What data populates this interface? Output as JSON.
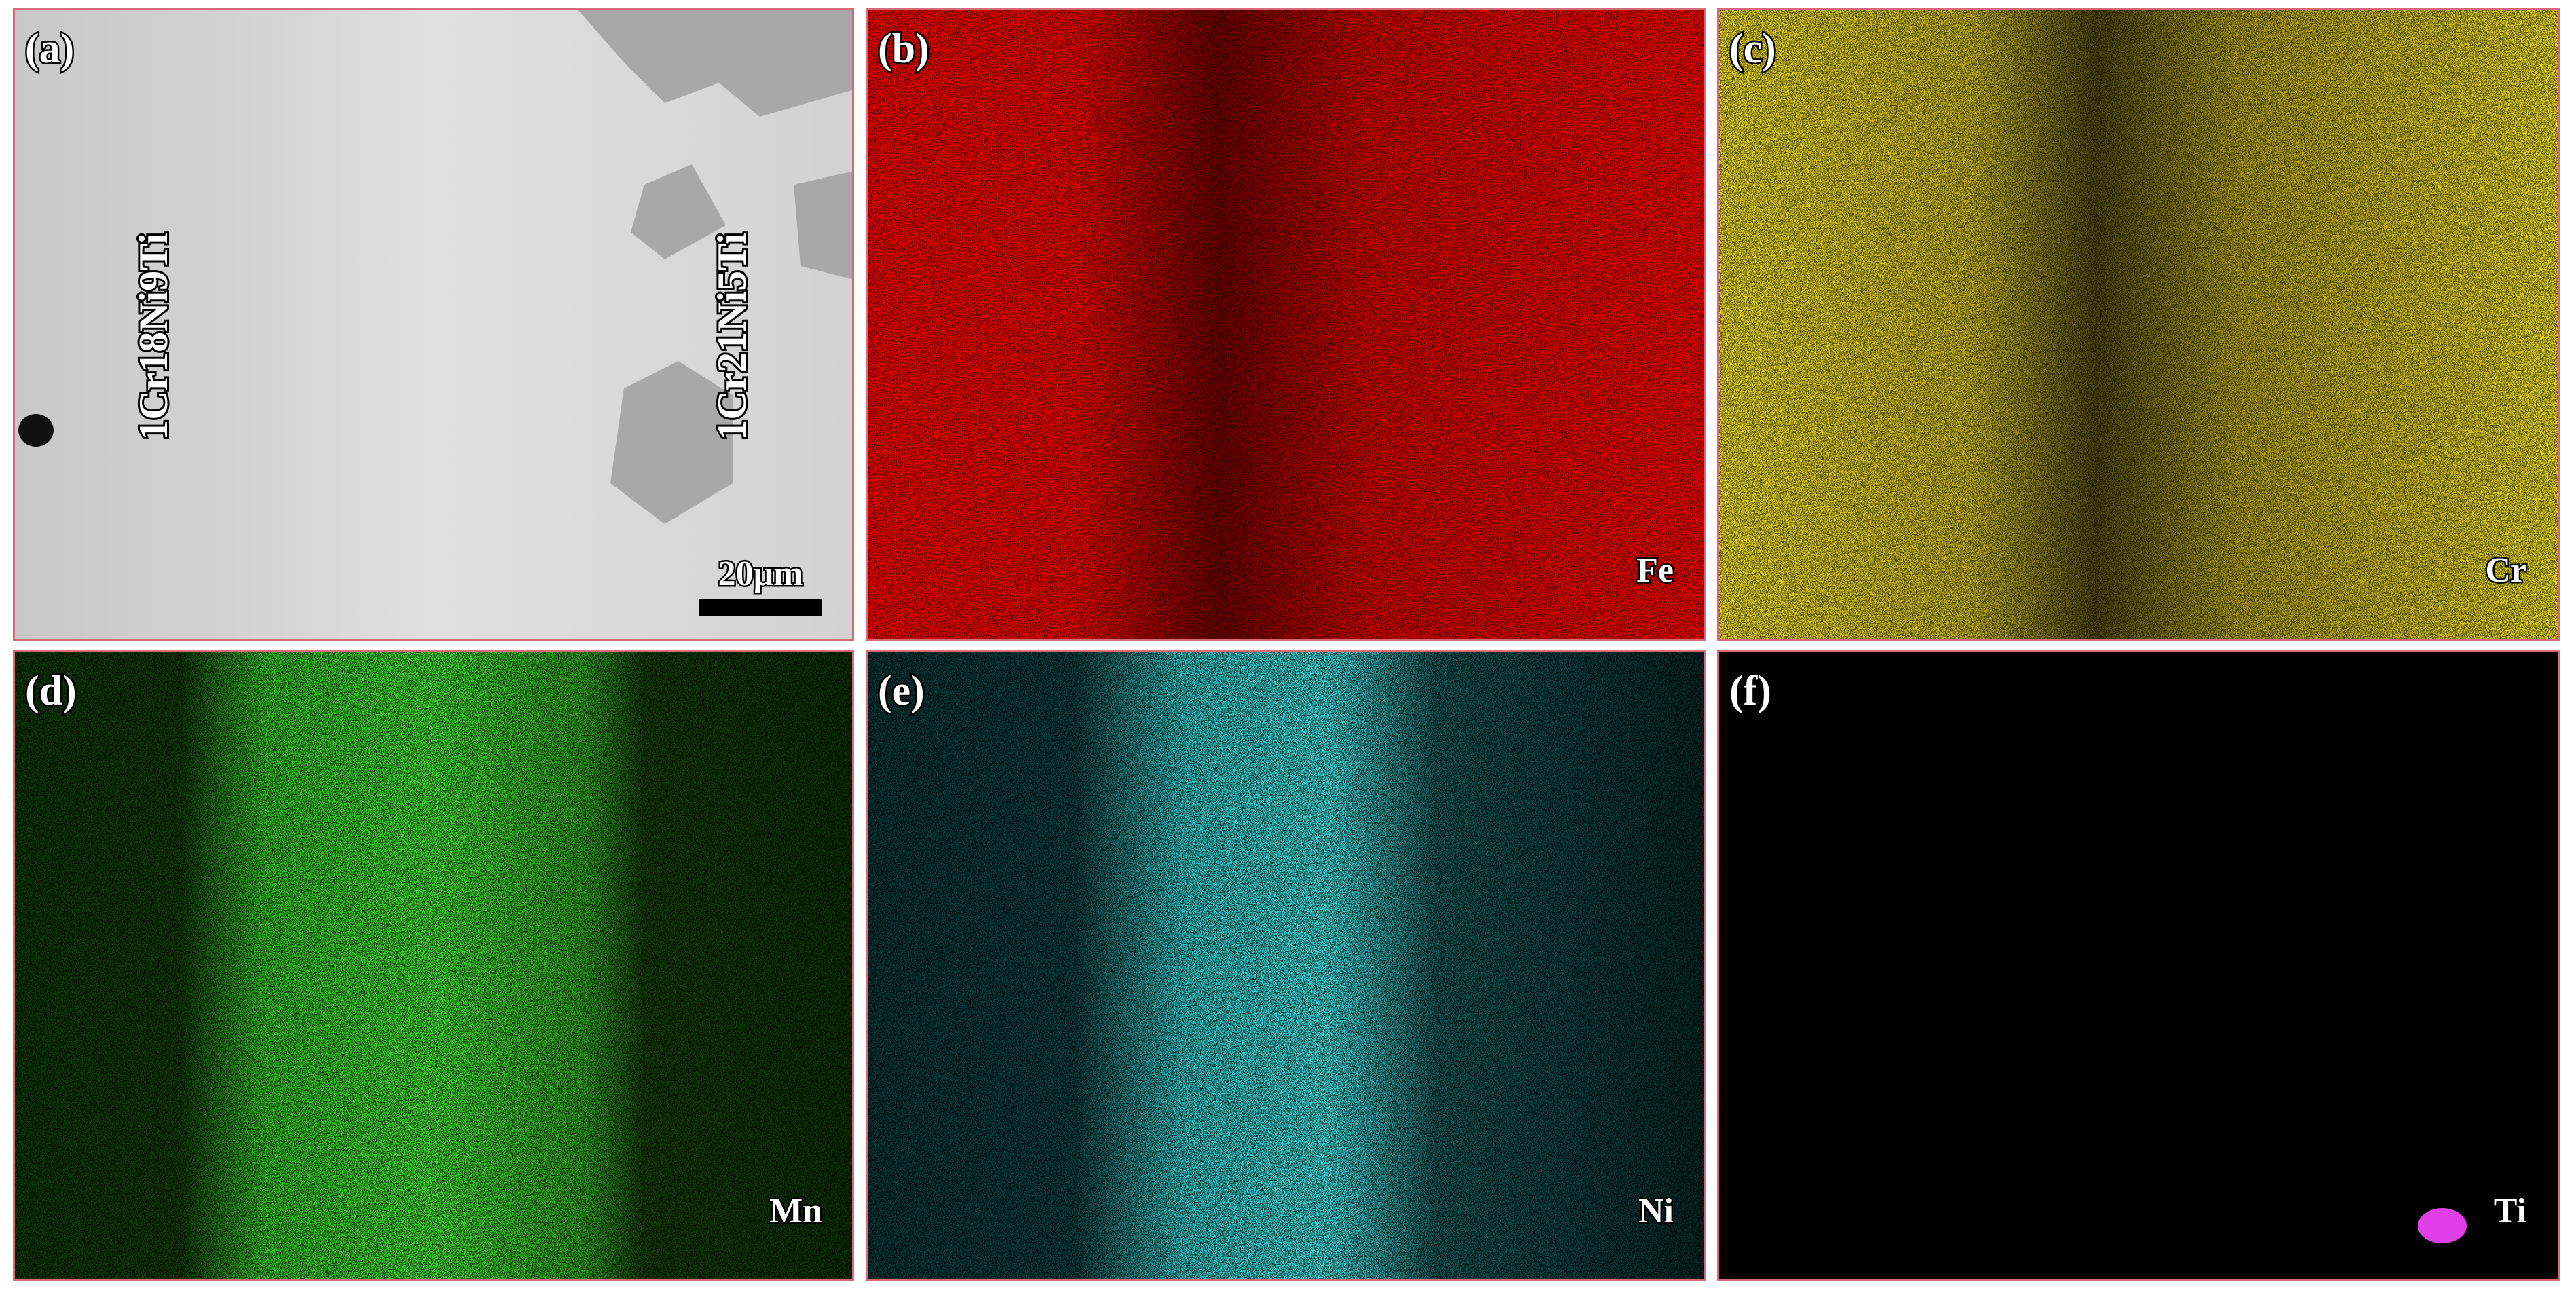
{
  "panels": [
    {
      "label": "(a)",
      "annotations": [
        "1Cr18Ni9Ti",
        "1Cr21Ni5Ti"
      ],
      "scale_bar": "20μm"
    },
    {
      "label": "(b)",
      "element": "Fe"
    },
    {
      "label": "(c)",
      "element": "Cr"
    },
    {
      "label": "(d)",
      "element": "Mn"
    },
    {
      "label": "(e)",
      "element": "Ni"
    },
    {
      "label": "(f)",
      "element": "Ti"
    }
  ]
}
